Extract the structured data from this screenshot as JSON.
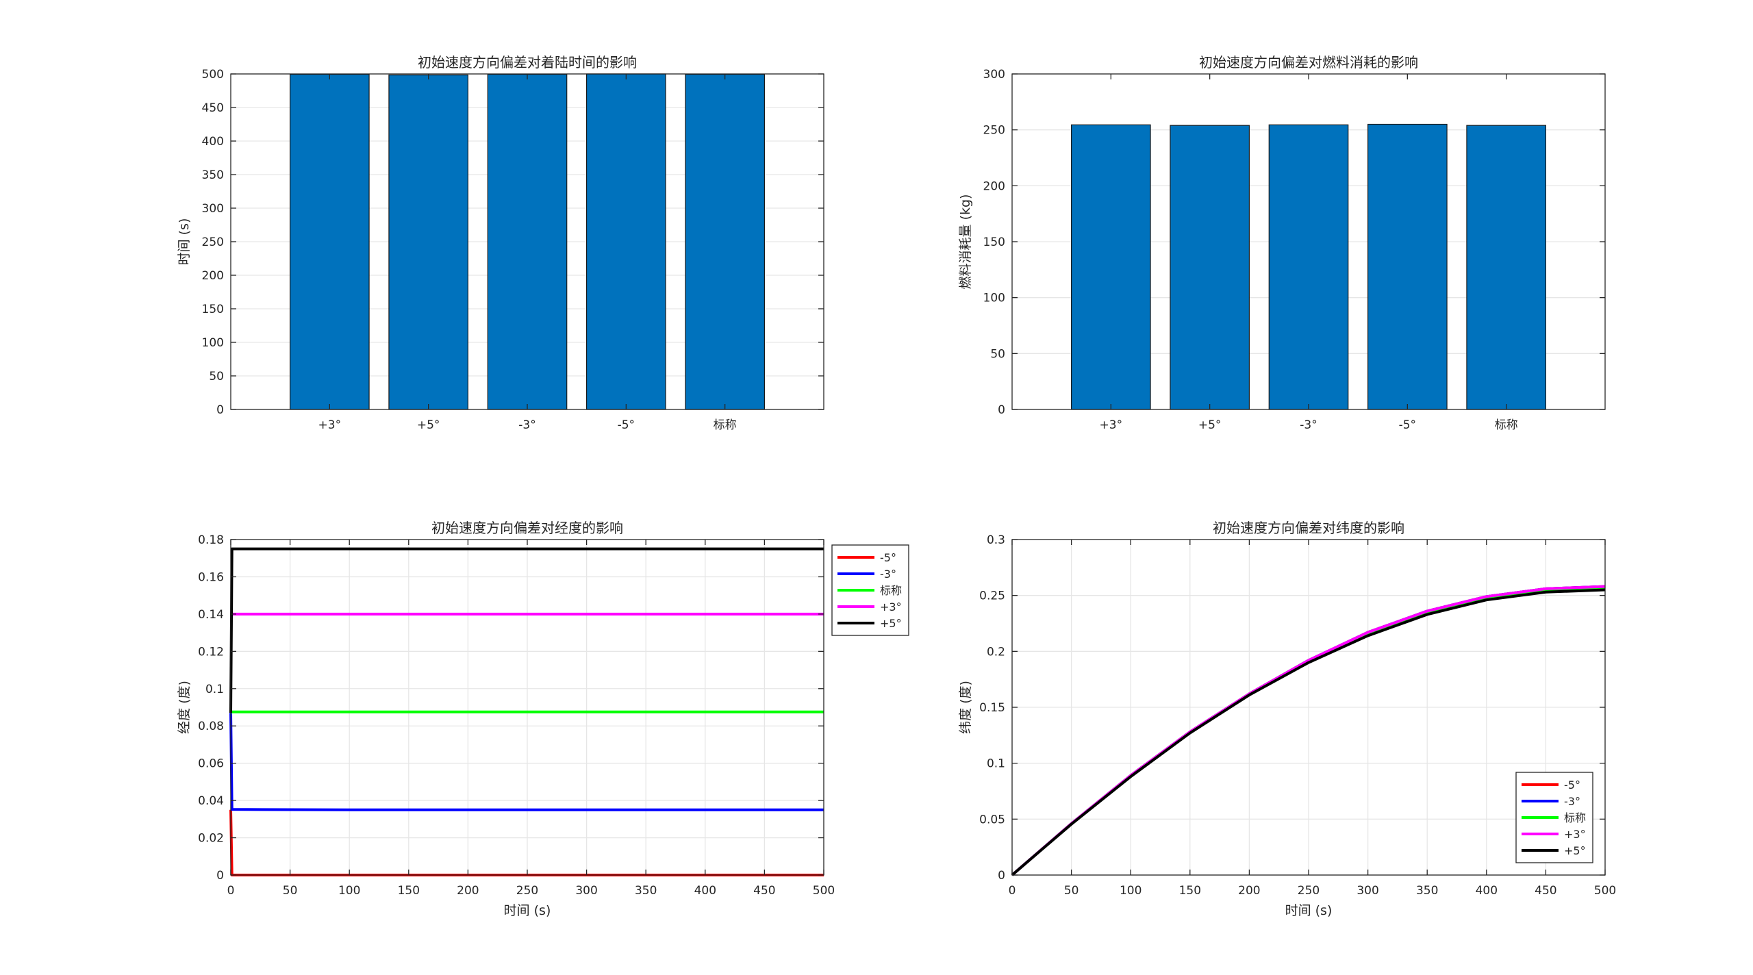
{
  "chart_data": [
    {
      "type": "bar",
      "title": "初始速度方向偏差对着陆时间的影响",
      "xlabel": "",
      "ylabel": "时间 (s)",
      "categories": [
        "+3°",
        "+5°",
        "-3°",
        "-5°",
        "标称"
      ],
      "values": [
        499.5,
        498.5,
        499.5,
        500.0,
        499.5
      ],
      "ylim": [
        0,
        500
      ],
      "yticks": [
        0,
        50,
        100,
        150,
        200,
        250,
        300,
        350,
        400,
        450,
        500
      ],
      "bar_color": "#0072BD",
      "grid": true
    },
    {
      "type": "bar",
      "title": "初始速度方向偏差对燃料消耗的影响",
      "xlabel": "",
      "ylabel": "燃料消耗量 (kg)",
      "categories": [
        "+3°",
        "+5°",
        "-3°",
        "-5°",
        "标称"
      ],
      "values": [
        254.5,
        254.0,
        254.5,
        255.0,
        254.0
      ],
      "ylim": [
        0,
        300
      ],
      "yticks": [
        0,
        50,
        100,
        150,
        200,
        250,
        300
      ],
      "bar_color": "#0072BD",
      "grid": true
    },
    {
      "type": "line",
      "title": "初始速度方向偏差对经度的影响",
      "xlabel": "时间 (s)",
      "ylabel": "经度 (度)",
      "xlim": [
        0,
        500
      ],
      "ylim": [
        0,
        0.18
      ],
      "xticks": [
        0,
        50,
        100,
        150,
        200,
        250,
        300,
        350,
        400,
        450,
        500
      ],
      "yticks": [
        0,
        0.02,
        0.04,
        0.06,
        0.08,
        0.1,
        0.12,
        0.14,
        0.16,
        0.18
      ],
      "legend_position": "outside-top-right",
      "grid": true,
      "series": [
        {
          "name": "-5°",
          "color": "#FF0000",
          "x": [
            0,
            1,
            500
          ],
          "y": [
            0.035,
            0.0,
            0.0
          ]
        },
        {
          "name": "-3°",
          "color": "#0000FF",
          "x": [
            0,
            1,
            100,
            500
          ],
          "y": [
            0.087,
            0.0352,
            0.035,
            0.035
          ]
        },
        {
          "name": "标称",
          "color": "#00FF00",
          "x": [
            0,
            500
          ],
          "y": [
            0.0875,
            0.0875
          ]
        },
        {
          "name": "+3°",
          "color": "#FF00FF",
          "x": [
            0,
            1,
            500
          ],
          "y": [
            0.14,
            0.14,
            0.14
          ]
        },
        {
          "name": "+5°",
          "color": "#000000",
          "x": [
            0,
            1,
            500
          ],
          "y": [
            0.087,
            0.175,
            0.175
          ]
        }
      ]
    },
    {
      "type": "line",
      "title": "初始速度方向偏差对纬度的影响",
      "xlabel": "时间 (s)",
      "ylabel": "纬度 (度)",
      "xlim": [
        0,
        500
      ],
      "ylim": [
        0,
        0.3
      ],
      "xticks": [
        0,
        50,
        100,
        150,
        200,
        250,
        300,
        350,
        400,
        450,
        500
      ],
      "yticks": [
        0,
        0.05,
        0.1,
        0.15,
        0.2,
        0.25,
        0.3
      ],
      "legend_position": "inside-bottom-right",
      "grid": true,
      "series": [
        {
          "name": "-5°",
          "color": "#FF0000",
          "x": [
            0,
            50,
            100,
            150,
            200,
            250,
            300,
            350,
            400,
            450,
            500
          ],
          "y": [
            0,
            0.046,
            0.089,
            0.128,
            0.162,
            0.192,
            0.217,
            0.236,
            0.249,
            0.256,
            0.258
          ]
        },
        {
          "name": "-3°",
          "color": "#0000FF",
          "x": [
            0,
            50,
            100,
            150,
            200,
            250,
            300,
            350,
            400,
            450,
            500
          ],
          "y": [
            0,
            0.046,
            0.089,
            0.128,
            0.162,
            0.192,
            0.217,
            0.236,
            0.249,
            0.256,
            0.258
          ]
        },
        {
          "name": "标称",
          "color": "#00FF00",
          "x": [
            0,
            50,
            100,
            150,
            200,
            250,
            300,
            350,
            400,
            450,
            500
          ],
          "y": [
            0,
            0.046,
            0.089,
            0.128,
            0.162,
            0.192,
            0.216,
            0.235,
            0.248,
            0.255,
            0.257
          ]
        },
        {
          "name": "+3°",
          "color": "#FF00FF",
          "x": [
            0,
            50,
            100,
            150,
            200,
            250,
            300,
            350,
            400,
            450,
            500
          ],
          "y": [
            0,
            0.046,
            0.089,
            0.128,
            0.162,
            0.192,
            0.217,
            0.236,
            0.249,
            0.256,
            0.258
          ]
        },
        {
          "name": "+5°",
          "color": "#000000",
          "x": [
            0,
            50,
            100,
            150,
            200,
            250,
            300,
            350,
            400,
            450,
            500
          ],
          "y": [
            0,
            0.0455,
            0.088,
            0.127,
            0.161,
            0.19,
            0.214,
            0.233,
            0.246,
            0.253,
            0.255
          ]
        }
      ]
    }
  ]
}
